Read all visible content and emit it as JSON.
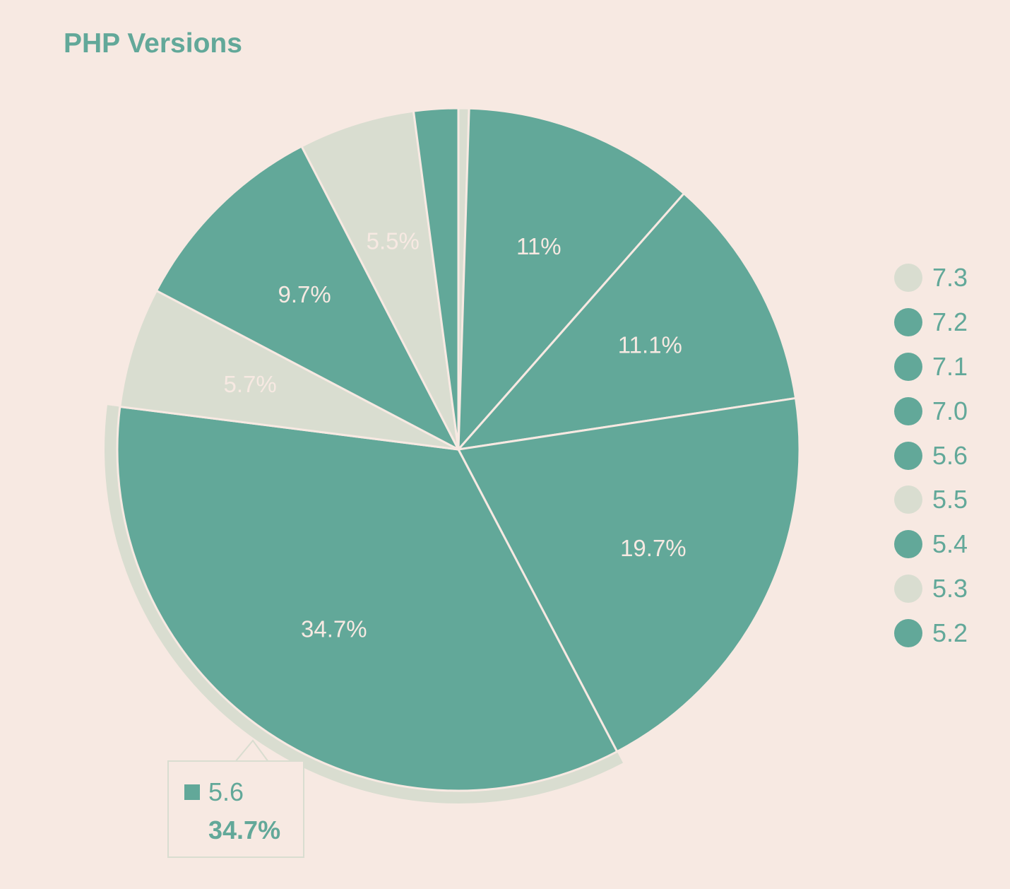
{
  "chart_data": {
    "type": "pie",
    "title": "PHP Versions",
    "series": [
      {
        "name": "7.3",
        "value": 0.5,
        "label": "",
        "fill": "light"
      },
      {
        "name": "7.2",
        "value": 11,
        "label": "11%",
        "fill": "solid"
      },
      {
        "name": "7.1",
        "value": 11.1,
        "label": "11.1%",
        "fill": "solid"
      },
      {
        "name": "7.0",
        "value": 19.7,
        "label": "19.7%",
        "fill": "solid"
      },
      {
        "name": "5.6",
        "value": 34.7,
        "label": "34.7%",
        "fill": "solid"
      },
      {
        "name": "5.5",
        "value": 5.7,
        "label": "5.7%",
        "fill": "light"
      },
      {
        "name": "5.4",
        "value": 9.7,
        "label": "9.7%",
        "fill": "solid"
      },
      {
        "name": "5.3",
        "value": 5.5,
        "label": "5.5%",
        "fill": "light"
      },
      {
        "name": "5.2",
        "value": 2.1,
        "label": "",
        "fill": "solid"
      }
    ],
    "legend_position": "right",
    "highlighted": "5.6"
  },
  "colors": {
    "background": "#f7e9e2",
    "solid": "#62a899",
    "light": "#d9ddd0",
    "separator": "#f7e9e2",
    "label_on_solid": "#f7e9e2",
    "label_on_light": "#f7e9e2"
  },
  "tooltip": {
    "name": "5.6",
    "value": "34.7%"
  }
}
